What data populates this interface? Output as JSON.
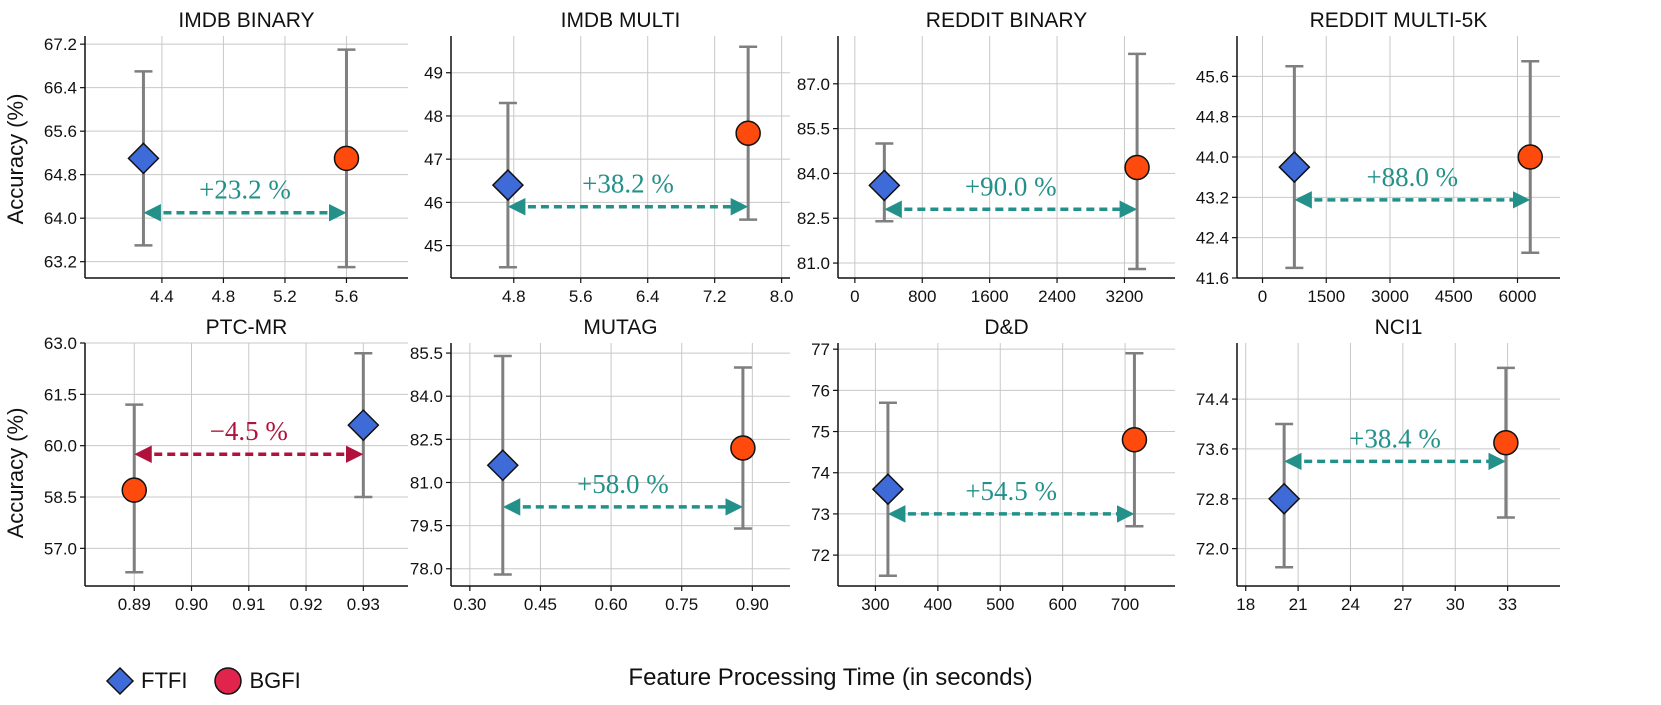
{
  "legend": {
    "ftfi": {
      "label": "FTFI",
      "color": "#3f6bd9"
    },
    "bgfi": {
      "label": "BGFI",
      "color": "#e0244c"
    }
  },
  "shared_xlabel": "Feature Processing Time (in seconds)",
  "shared_ylabel": "Accuracy (%)",
  "colors": {
    "positive": "#239189",
    "negative": "#b0123b",
    "marker_orange": "#ff4a0d",
    "errorbar": "#7f7f7f"
  },
  "chart_data": [
    {
      "type": "scatter",
      "title": "IMDB BINARY",
      "xlim": [
        3.9,
        6.0
      ],
      "xticks": [
        4.4,
        4.8,
        5.2,
        5.6
      ],
      "xtick_labels": [
        "4.4",
        "4.8",
        "5.2",
        "5.6"
      ],
      "ylim": [
        62.9,
        67.35
      ],
      "yticks": [
        63.2,
        64.0,
        64.8,
        65.6,
        66.4,
        67.2
      ],
      "ytick_labels": [
        "63.2",
        "64.0",
        "64.8",
        "65.6",
        "66.4",
        "67.2"
      ],
      "ftfi": {
        "x": 4.28,
        "y": 65.1,
        "low": 63.5,
        "high": 66.7
      },
      "bgfi": {
        "x": 5.6,
        "y": 65.1,
        "low": 63.1,
        "high": 67.1
      },
      "arrow": {
        "x1": 4.28,
        "x2": 5.6,
        "y": 64.1,
        "label": "+23.2 %",
        "sign": "positive"
      }
    },
    {
      "type": "scatter",
      "title": "IMDB MULTI",
      "xlim": [
        4.05,
        8.1
      ],
      "xticks": [
        4.8,
        5.6,
        6.4,
        7.2,
        8.0
      ],
      "xtick_labels": [
        "4.8",
        "5.6",
        "6.4",
        "7.2",
        "8.0"
      ],
      "ylim": [
        44.25,
        49.85
      ],
      "yticks": [
        45,
        46,
        47,
        48,
        49
      ],
      "ytick_labels": [
        "45",
        "46",
        "47",
        "48",
        "49"
      ],
      "ftfi": {
        "x": 4.73,
        "y": 46.4,
        "low": 44.5,
        "high": 48.3
      },
      "bgfi": {
        "x": 7.6,
        "y": 47.6,
        "low": 45.6,
        "high": 49.6
      },
      "arrow": {
        "x1": 4.73,
        "x2": 7.6,
        "y": 45.9,
        "label": "+38.2 %",
        "sign": "positive"
      }
    },
    {
      "type": "scatter",
      "title": "REDDIT BINARY",
      "xlim": [
        -200,
        3800
      ],
      "xticks": [
        0,
        800,
        1600,
        2400,
        3200
      ],
      "xtick_labels": [
        "0",
        "800",
        "1600",
        "2400",
        "3200"
      ],
      "ylim": [
        80.5,
        88.6
      ],
      "yticks": [
        81.0,
        82.5,
        84.0,
        85.5,
        87.0
      ],
      "ytick_labels": [
        "81.0",
        "82.5",
        "84.0",
        "85.5",
        "87.0"
      ],
      "ftfi": {
        "x": 350,
        "y": 83.6,
        "low": 82.4,
        "high": 85.0
      },
      "bgfi": {
        "x": 3350,
        "y": 84.2,
        "low": 80.8,
        "high": 88.0
      },
      "arrow": {
        "x1": 350,
        "x2": 3350,
        "y": 82.8,
        "label": "+90.0 %",
        "sign": "positive"
      }
    },
    {
      "type": "scatter",
      "title": "REDDIT MULTI-5K",
      "xlim": [
        -600,
        7000
      ],
      "xticks": [
        0,
        1500,
        3000,
        4500,
        6000
      ],
      "xtick_labels": [
        "0",
        "1500",
        "3000",
        "4500",
        "6000"
      ],
      "ylim": [
        41.6,
        46.4
      ],
      "yticks": [
        41.6,
        42.4,
        43.2,
        44.0,
        44.8,
        45.6
      ],
      "ytick_labels": [
        "41.6",
        "42.4",
        "43.2",
        "44.0",
        "44.8",
        "45.6"
      ],
      "ftfi": {
        "x": 750,
        "y": 43.8,
        "low": 41.8,
        "high": 45.8
      },
      "bgfi": {
        "x": 6300,
        "y": 44.0,
        "low": 42.1,
        "high": 45.9
      },
      "arrow": {
        "x1": 750,
        "x2": 6300,
        "y": 43.15,
        "label": "+88.0 %",
        "sign": "positive"
      }
    },
    {
      "type": "scatter",
      "title": "PTC-MR",
      "xlim": [
        0.8814,
        0.9378
      ],
      "xticks": [
        0.89,
        0.9,
        0.91,
        0.92,
        0.93
      ],
      "xtick_labels": [
        "0.89",
        "0.90",
        "0.91",
        "0.92",
        "0.93"
      ],
      "ylim": [
        55.9,
        63.0
      ],
      "yticks": [
        57.0,
        58.5,
        60.0,
        61.5,
        63.0
      ],
      "ytick_labels": [
        "57.0",
        "58.5",
        "60.0",
        "61.5",
        "63.0"
      ],
      "ftfi": {
        "x": 0.93,
        "y": 60.6,
        "low": 58.5,
        "high": 62.7
      },
      "bgfi": {
        "x": 0.89,
        "y": 58.7,
        "low": 56.3,
        "high": 61.2
      },
      "arrow": {
        "x1": 0.89,
        "x2": 0.93,
        "y": 59.75,
        "label": "−4.5 %",
        "sign": "negative"
      }
    },
    {
      "type": "scatter",
      "title": "MUTAG",
      "xlim": [
        0.26,
        0.98
      ],
      "xticks": [
        0.3,
        0.45,
        0.6,
        0.75,
        0.9
      ],
      "xtick_labels": [
        "0.30",
        "0.45",
        "0.60",
        "0.75",
        "0.90"
      ],
      "ylim": [
        77.4,
        85.85
      ],
      "yticks": [
        78.0,
        79.5,
        81.0,
        82.5,
        84.0,
        85.5
      ],
      "ytick_labels": [
        "78.0",
        "79.5",
        "81.0",
        "82.5",
        "84.0",
        "85.5"
      ],
      "ftfi": {
        "x": 0.37,
        "y": 81.6,
        "low": 77.8,
        "high": 85.4
      },
      "bgfi": {
        "x": 0.88,
        "y": 82.2,
        "low": 79.4,
        "high": 85.0
      },
      "arrow": {
        "x1": 0.37,
        "x2": 0.88,
        "y": 80.15,
        "label": "+58.0 %",
        "sign": "positive"
      }
    },
    {
      "type": "scatter",
      "title": "D&D",
      "xlim": [
        240,
        780
      ],
      "xticks": [
        300,
        400,
        500,
        600,
        700
      ],
      "xtick_labels": [
        "300",
        "400",
        "500",
        "600",
        "700"
      ],
      "ylim": [
        71.25,
        77.15
      ],
      "yticks": [
        72,
        73,
        74,
        75,
        76,
        77
      ],
      "ytick_labels": [
        "72",
        "73",
        "74",
        "75",
        "76",
        "77"
      ],
      "ftfi": {
        "x": 320,
        "y": 73.6,
        "low": 71.5,
        "high": 75.7
      },
      "bgfi": {
        "x": 715,
        "y": 74.8,
        "low": 72.7,
        "high": 76.9
      },
      "arrow": {
        "x1": 320,
        "x2": 715,
        "y": 73.0,
        "label": "+54.5 %",
        "sign": "positive"
      }
    },
    {
      "type": "scatter",
      "title": "NCI1",
      "xlim": [
        17.5,
        36.0
      ],
      "xticks": [
        18,
        21,
        24,
        27,
        30,
        33
      ],
      "xtick_labels": [
        "18",
        "21",
        "24",
        "27",
        "30",
        "33"
      ],
      "ylim": [
        71.4,
        75.3
      ],
      "yticks": [
        72.0,
        72.8,
        73.6,
        74.4
      ],
      "ytick_labels": [
        "72.0",
        "72.8",
        "73.6",
        "74.4"
      ],
      "ftfi": {
        "x": 20.2,
        "y": 72.8,
        "low": 71.7,
        "high": 74.0
      },
      "bgfi": {
        "x": 32.9,
        "y": 73.7,
        "low": 72.5,
        "high": 74.9
      },
      "arrow": {
        "x1": 20.2,
        "x2": 32.9,
        "y": 73.4,
        "label": "+38.4 %",
        "sign": "positive"
      }
    }
  ]
}
